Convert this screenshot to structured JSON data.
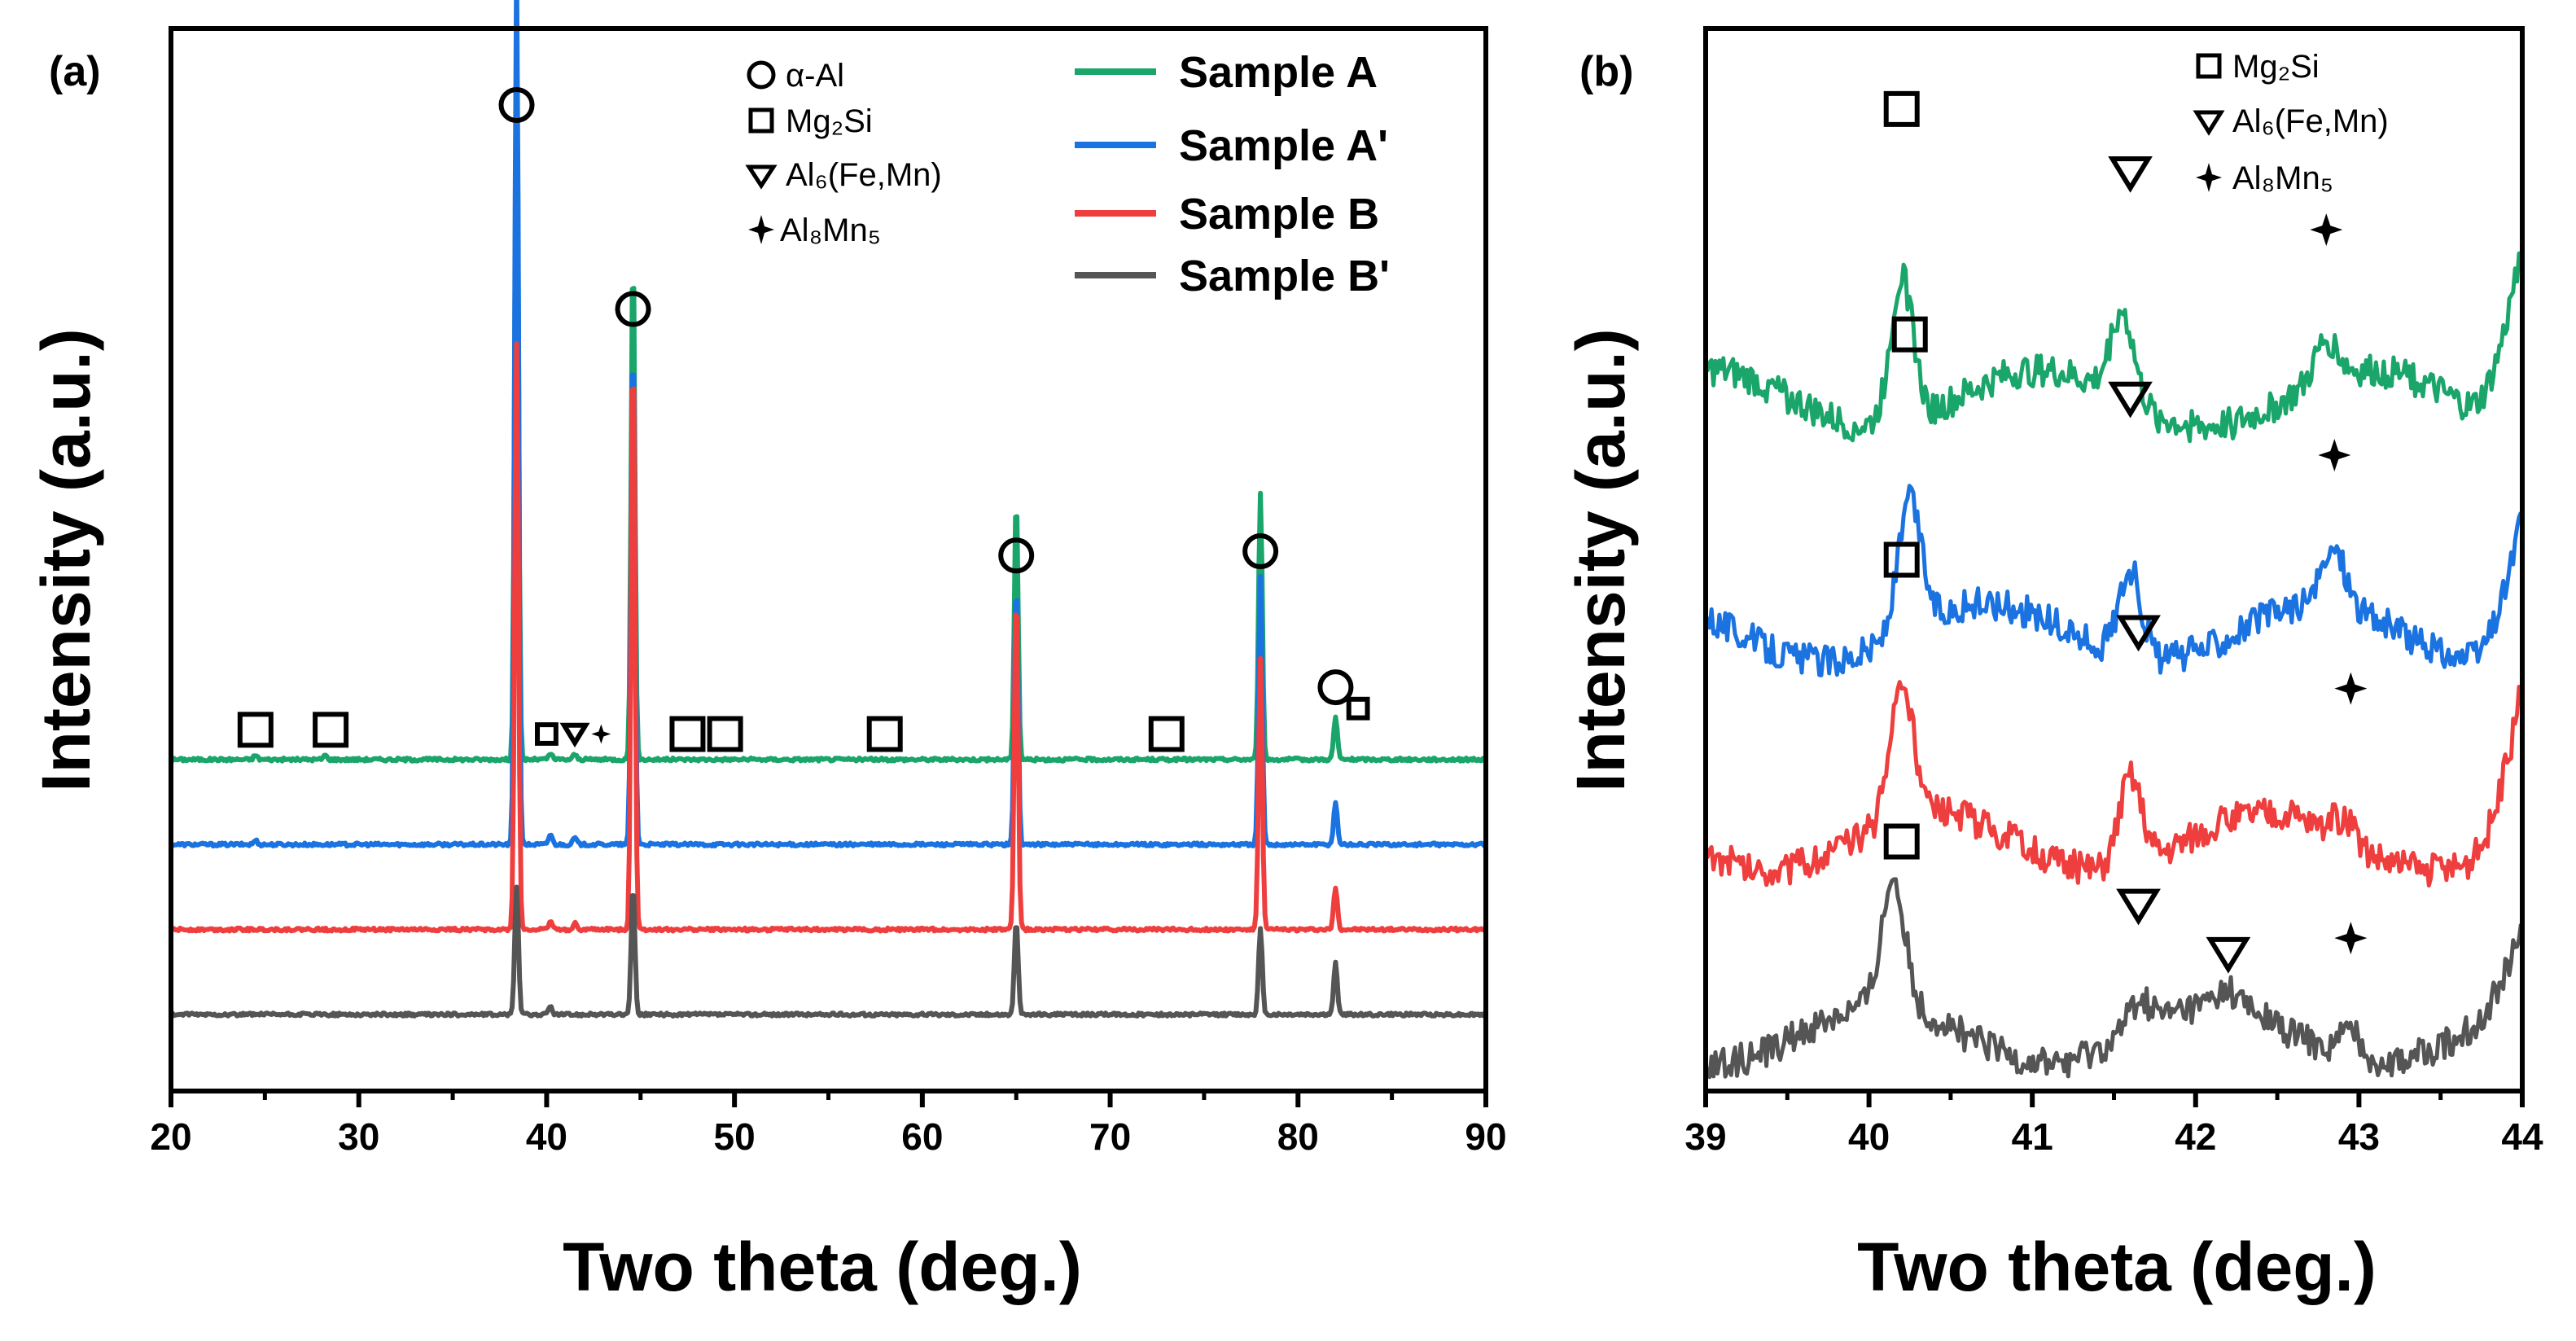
{
  "colors": {
    "sample_a": "#1aa56a",
    "sample_a_prime": "#1a73e0",
    "sample_b": "#ef3e3e",
    "sample_b_prime": "#555555",
    "axis": "#000000"
  },
  "chart_data": [
    {
      "type": "line",
      "panel_label": "(a)",
      "xlabel": "Two theta (deg.)",
      "ylabel": "Intensity (a.u.)",
      "xlim": [
        20,
        90
      ],
      "x_ticks": [
        "20",
        "30",
        "40",
        "50",
        "60",
        "70",
        "80",
        "90"
      ],
      "y_ticks_shown": false,
      "phase_legend": [
        {
          "symbol": "circle",
          "label": "α-Al"
        },
        {
          "symbol": "square",
          "label": "Mg₂Si"
        },
        {
          "symbol": "triangle-down",
          "label": "Al₆(Fe,Mn)"
        },
        {
          "symbol": "star",
          "label": "Al₈Mn₅"
        }
      ],
      "series": [
        {
          "name": "Sample A",
          "color_key": "sample_a",
          "baseline": 3.9,
          "peaks": [
            [
              38.4,
              8.2
            ],
            [
              44.6,
              6.0
            ],
            [
              65.0,
              3.1
            ],
            [
              78.0,
              3.15
            ],
            [
              82.0,
              0.5
            ],
            [
              24.5,
              0.05
            ],
            [
              28.2,
              0.05
            ],
            [
              40.2,
              0.07
            ],
            [
              41.5,
              0.06
            ]
          ]
        },
        {
          "name": "Sample A'",
          "color_key": "sample_a_prime",
          "baseline": 2.9,
          "peaks": [
            [
              38.4,
              10.4
            ],
            [
              44.6,
              6.0
            ],
            [
              65.0,
              3.1
            ],
            [
              78.0,
              3.15
            ],
            [
              82.0,
              0.5
            ],
            [
              24.5,
              0.05
            ],
            [
              40.2,
              0.12
            ],
            [
              41.5,
              0.08
            ]
          ]
        },
        {
          "name": "Sample B",
          "color_key": "sample_b",
          "baseline": 1.9,
          "peaks": [
            [
              38.4,
              6.9
            ],
            [
              44.6,
              6.9
            ],
            [
              65.0,
              4.0
            ],
            [
              78.0,
              3.2
            ],
            [
              82.0,
              0.5
            ],
            [
              40.2,
              0.1
            ],
            [
              41.5,
              0.07
            ]
          ]
        },
        {
          "name": "Sample B'",
          "color_key": "sample_b_prime",
          "baseline": 0.9,
          "peaks": [
            [
              38.4,
              1.5
            ],
            [
              44.6,
              1.5
            ],
            [
              65.0,
              1.1
            ],
            [
              78.0,
              1.0
            ],
            [
              82.0,
              0.6
            ],
            [
              40.2,
              0.1
            ]
          ]
        }
      ],
      "markers": [
        {
          "symbol": "circle",
          "x": 38.4,
          "y": 11.6
        },
        {
          "symbol": "circle",
          "x": 44.6,
          "y": 9.2
        },
        {
          "symbol": "circle",
          "x": 65.0,
          "y": 6.3
        },
        {
          "symbol": "circle",
          "x": 78.0,
          "y": 6.35
        },
        {
          "symbol": "circle",
          "x": 82.0,
          "y": 4.75
        },
        {
          "symbol": "square",
          "x": 24.5,
          "y": 4.25
        },
        {
          "symbol": "square",
          "x": 28.5,
          "y": 4.25
        },
        {
          "symbol": "square",
          "x": 40.0,
          "y": 4.2,
          "small": true
        },
        {
          "symbol": "triangle-down",
          "x": 41.5,
          "y": 4.2,
          "small": true
        },
        {
          "symbol": "star",
          "x": 42.9,
          "y": 4.2,
          "small": true
        },
        {
          "symbol": "square",
          "x": 47.5,
          "y": 4.2
        },
        {
          "symbol": "square",
          "x": 49.5,
          "y": 4.2
        },
        {
          "symbol": "square",
          "x": 58.0,
          "y": 4.2
        },
        {
          "symbol": "square",
          "x": 73.0,
          "y": 4.2
        },
        {
          "symbol": "square",
          "x": 83.2,
          "y": 4.5,
          "small": true
        }
      ]
    },
    {
      "type": "line",
      "panel_label": "(b)",
      "xlabel": "Two theta (deg.)",
      "ylabel": "Intensity (a.u.)",
      "xlim": [
        39,
        44
      ],
      "x_ticks": [
        "39",
        "40",
        "41",
        "42",
        "43",
        "44"
      ],
      "y_ticks_shown": false,
      "phase_legend": [
        {
          "symbol": "square",
          "label": "Mg₂Si"
        },
        {
          "symbol": "triangle-down",
          "label": "Al₆(Fe,Mn)"
        },
        {
          "symbol": "star",
          "label": "Al₈Mn₅"
        }
      ],
      "series": [
        {
          "name": "Sample A",
          "color_key": "sample_a",
          "baseline": 8.6,
          "peaks": [
            [
              40.2,
              1.8
            ],
            [
              41.55,
              1.1
            ],
            [
              42.8,
              0.5
            ]
          ],
          "rise_end": 2.4
        },
        {
          "name": "Sample A'",
          "color_key": "sample_a_prime",
          "baseline": 5.7,
          "peaks": [
            [
              40.25,
              1.6
            ],
            [
              41.6,
              1.1
            ],
            [
              42.85,
              0.7
            ]
          ],
          "rise_end": 1.8
        },
        {
          "name": "Sample B",
          "color_key": "sample_b",
          "baseline": 3.1,
          "peaks": [
            [
              40.2,
              1.7
            ],
            [
              41.6,
              1.1
            ],
            [
              42.9,
              0.25
            ]
          ],
          "rise_end": 1.9
        },
        {
          "name": "Sample B'",
          "color_key": "sample_b_prime",
          "baseline": 0.7,
          "peaks": [
            [
              40.15,
              1.6
            ],
            [
              41.65,
              0.35
            ],
            [
              42.2,
              0.2
            ],
            [
              42.95,
              0.35
            ]
          ],
          "rise_end": 1.1
        }
      ],
      "markers": [
        {
          "symbol": "square",
          "x": 40.2,
          "y": 12.2
        },
        {
          "symbol": "triangle-down",
          "x": 41.6,
          "y": 11.4
        },
        {
          "symbol": "star",
          "x": 42.8,
          "y": 10.7
        },
        {
          "symbol": "square",
          "x": 40.25,
          "y": 9.4
        },
        {
          "symbol": "triangle-down",
          "x": 41.6,
          "y": 8.6
        },
        {
          "symbol": "star",
          "x": 42.85,
          "y": 7.9
        },
        {
          "symbol": "square",
          "x": 40.2,
          "y": 6.6
        },
        {
          "symbol": "triangle-down",
          "x": 41.65,
          "y": 5.7
        },
        {
          "symbol": "star",
          "x": 42.95,
          "y": 5.0
        },
        {
          "symbol": "square",
          "x": 40.2,
          "y": 3.1
        },
        {
          "symbol": "triangle-down",
          "x": 41.65,
          "y": 2.3
        },
        {
          "symbol": "triangle-down",
          "x": 42.2,
          "y": 1.7
        },
        {
          "symbol": "star",
          "x": 42.95,
          "y": 1.9
        }
      ]
    }
  ]
}
